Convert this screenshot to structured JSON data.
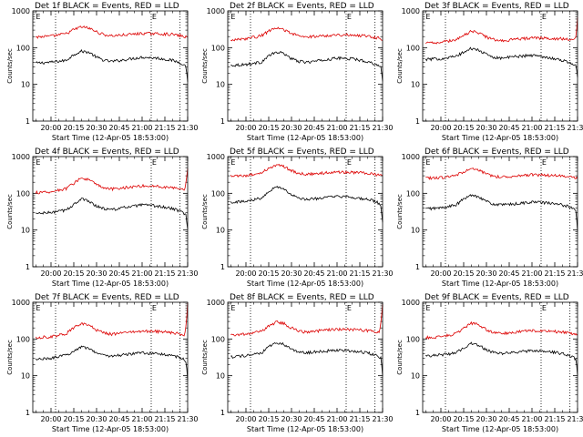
{
  "page": {
    "ylabel": "Counts/sec",
    "xlabel": "Start Time (12-Apr-05 18:53:00)",
    "marker_label": "E",
    "y_ticks": [
      "1",
      "10",
      "100",
      "1000"
    ],
    "x_ticks": [
      "20:00",
      "20:15",
      "20:30",
      "20:45",
      "21:00",
      "21:15",
      "21:30"
    ],
    "colors": {
      "events": "#000000",
      "lld": "#dd0000",
      "axis": "#000000"
    }
  },
  "chart_data": [
    {
      "type": "line",
      "title": "Det 1f BLACK = Events, RED = LLD",
      "x_range_min": [
        -12,
        90
      ],
      "ylim": [
        1,
        1000
      ],
      "y_scale": "log",
      "dotted_markers_min": [
        3,
        66,
        85
      ],
      "series": [
        {
          "key": "events",
          "color": "#000000",
          "x": [
            -10,
            0,
            10,
            15,
            20,
            25,
            30,
            35,
            40,
            50,
            60,
            70,
            80,
            86,
            89,
            90
          ],
          "values": [
            38,
            40,
            45,
            65,
            80,
            75,
            55,
            45,
            42,
            48,
            55,
            52,
            45,
            38,
            30,
            12
          ]
        },
        {
          "key": "lld",
          "color": "#dd0000",
          "x": [
            -10,
            0,
            10,
            15,
            20,
            25,
            30,
            35,
            40,
            50,
            60,
            70,
            80,
            88,
            90
          ],
          "values": [
            195,
            205,
            240,
            310,
            370,
            340,
            270,
            225,
            210,
            225,
            245,
            240,
            230,
            200,
            185
          ]
        }
      ]
    },
    {
      "type": "line",
      "title": "Det 2f BLACK = Events, RED = LLD",
      "x_range_min": [
        -12,
        90
      ],
      "ylim": [
        1,
        1000
      ],
      "y_scale": "log",
      "dotted_markers_min": [
        3,
        66,
        85
      ],
      "series": [
        {
          "key": "events",
          "color": "#000000",
          "x": [
            -10,
            0,
            10,
            15,
            20,
            25,
            30,
            35,
            40,
            50,
            60,
            70,
            80,
            86,
            89,
            90
          ],
          "values": [
            33,
            35,
            40,
            60,
            75,
            70,
            50,
            42,
            40,
            45,
            52,
            50,
            42,
            35,
            28,
            12
          ]
        },
        {
          "key": "lld",
          "color": "#dd0000",
          "x": [
            -10,
            0,
            10,
            15,
            20,
            25,
            30,
            35,
            40,
            50,
            60,
            70,
            80,
            88,
            90
          ],
          "values": [
            165,
            175,
            210,
            280,
            340,
            310,
            245,
            205,
            195,
            210,
            225,
            220,
            210,
            180,
            170
          ]
        }
      ]
    },
    {
      "type": "line",
      "title": "Det 3f BLACK = Events, RED = LLD",
      "x_range_min": [
        -12,
        90
      ],
      "ylim": [
        1,
        1000
      ],
      "y_scale": "log",
      "dotted_markers_min": [
        3,
        66,
        85
      ],
      "series": [
        {
          "key": "events",
          "color": "#000000",
          "x": [
            -10,
            0,
            10,
            15,
            20,
            25,
            30,
            35,
            40,
            50,
            60,
            70,
            80,
            86,
            89,
            90
          ],
          "values": [
            48,
            50,
            58,
            75,
            95,
            85,
            65,
            55,
            52,
            58,
            62,
            55,
            45,
            38,
            32,
            15
          ]
        },
        {
          "key": "lld",
          "color": "#dd0000",
          "x": [
            -10,
            0,
            10,
            15,
            20,
            25,
            30,
            35,
            40,
            50,
            60,
            70,
            80,
            88,
            89,
            90
          ],
          "values": [
            135,
            140,
            165,
            215,
            280,
            255,
            195,
            165,
            155,
            170,
            185,
            180,
            175,
            160,
            200,
            650
          ]
        }
      ]
    },
    {
      "type": "line",
      "title": "Det 4f BLACK = Events, RED = LLD",
      "x_range_min": [
        -12,
        90
      ],
      "ylim": [
        1,
        1000
      ],
      "y_scale": "log",
      "dotted_markers_min": [
        3,
        66,
        85
      ],
      "series": [
        {
          "key": "events",
          "color": "#000000",
          "x": [
            -10,
            0,
            10,
            15,
            20,
            25,
            30,
            35,
            40,
            50,
            60,
            70,
            80,
            86,
            89,
            90
          ],
          "values": [
            28,
            30,
            35,
            50,
            70,
            62,
            45,
            38,
            36,
            42,
            48,
            45,
            38,
            32,
            26,
            10
          ]
        },
        {
          "key": "lld",
          "color": "#dd0000",
          "x": [
            -10,
            0,
            10,
            15,
            20,
            25,
            30,
            35,
            40,
            50,
            60,
            70,
            80,
            88,
            89,
            90
          ],
          "values": [
            105,
            110,
            135,
            190,
            260,
            235,
            170,
            140,
            130,
            145,
            160,
            155,
            145,
            130,
            200,
            500
          ]
        }
      ]
    },
    {
      "type": "line",
      "title": "Det 5f BLACK = Events, RED = LLD",
      "x_range_min": [
        -12,
        90
      ],
      "ylim": [
        1,
        1000
      ],
      "y_scale": "log",
      "dotted_markers_min": [
        3,
        66,
        85
      ],
      "series": [
        {
          "key": "events",
          "color": "#000000",
          "x": [
            -10,
            0,
            10,
            15,
            20,
            25,
            30,
            35,
            40,
            50,
            60,
            70,
            80,
            86,
            89,
            90
          ],
          "values": [
            58,
            60,
            75,
            115,
            150,
            135,
            90,
            72,
            68,
            75,
            82,
            78,
            68,
            60,
            45,
            15
          ]
        },
        {
          "key": "lld",
          "color": "#dd0000",
          "x": [
            -10,
            0,
            10,
            15,
            20,
            25,
            30,
            35,
            40,
            50,
            60,
            70,
            80,
            88,
            90
          ],
          "values": [
            290,
            300,
            360,
            480,
            590,
            540,
            420,
            350,
            330,
            355,
            380,
            370,
            350,
            310,
            295
          ]
        }
      ]
    },
    {
      "type": "line",
      "title": "Det 6f BLACK = Events, RED = LLD",
      "x_range_min": [
        -12,
        90
      ],
      "ylim": [
        1,
        1000
      ],
      "y_scale": "log",
      "dotted_markers_min": [
        3,
        66,
        85
      ],
      "series": [
        {
          "key": "events",
          "color": "#000000",
          "x": [
            -10,
            0,
            10,
            15,
            20,
            25,
            30,
            35,
            40,
            50,
            60,
            70,
            80,
            86,
            89,
            90
          ],
          "values": [
            38,
            40,
            48,
            70,
            90,
            82,
            60,
            50,
            48,
            52,
            58,
            55,
            48,
            42,
            35,
            10
          ]
        },
        {
          "key": "lld",
          "color": "#dd0000",
          "x": [
            -10,
            0,
            10,
            15,
            20,
            25,
            30,
            35,
            40,
            50,
            60,
            70,
            80,
            88,
            90
          ],
          "values": [
            260,
            265,
            305,
            390,
            460,
            420,
            335,
            290,
            280,
            300,
            320,
            310,
            295,
            270,
            255
          ]
        }
      ]
    },
    {
      "type": "line",
      "title": "Det 7f BLACK = Events, RED = LLD",
      "x_range_min": [
        -12,
        90
      ],
      "ylim": [
        1,
        1000
      ],
      "y_scale": "log",
      "dotted_markers_min": [
        3,
        66,
        85
      ],
      "series": [
        {
          "key": "events",
          "color": "#000000",
          "x": [
            -10,
            0,
            10,
            15,
            20,
            25,
            30,
            35,
            40,
            50,
            60,
            70,
            80,
            86,
            89,
            90
          ],
          "values": [
            28,
            30,
            36,
            48,
            62,
            56,
            42,
            36,
            34,
            38,
            42,
            40,
            35,
            30,
            25,
            8
          ]
        },
        {
          "key": "lld",
          "color": "#dd0000",
          "x": [
            -10,
            0,
            10,
            15,
            20,
            25,
            30,
            35,
            40,
            50,
            60,
            70,
            80,
            88,
            89,
            90
          ],
          "values": [
            110,
            115,
            140,
            200,
            260,
            235,
            175,
            145,
            135,
            150,
            165,
            160,
            150,
            130,
            250,
            900
          ]
        }
      ]
    },
    {
      "type": "line",
      "title": "Det 8f BLACK = Events, RED = LLD",
      "x_range_min": [
        -12,
        90
      ],
      "ylim": [
        1,
        1000
      ],
      "y_scale": "log",
      "dotted_markers_min": [
        3,
        66,
        85
      ],
      "series": [
        {
          "key": "events",
          "color": "#000000",
          "x": [
            -10,
            0,
            10,
            15,
            20,
            25,
            30,
            35,
            40,
            50,
            60,
            70,
            80,
            86,
            89,
            90
          ],
          "values": [
            33,
            35,
            40,
            62,
            80,
            72,
            52,
            44,
            42,
            46,
            50,
            48,
            42,
            36,
            30,
            10
          ]
        },
        {
          "key": "lld",
          "color": "#dd0000",
          "x": [
            -10,
            0,
            10,
            15,
            20,
            25,
            30,
            35,
            40,
            50,
            60,
            70,
            80,
            88,
            89,
            90
          ],
          "values": [
            130,
            135,
            160,
            225,
            290,
            265,
            200,
            165,
            155,
            170,
            185,
            180,
            170,
            150,
            300,
            900
          ]
        }
      ]
    },
    {
      "type": "line",
      "title": "Det 9f BLACK = Events, RED = LLD",
      "x_range_min": [
        -12,
        90
      ],
      "ylim": [
        1,
        1000
      ],
      "y_scale": "log",
      "dotted_markers_min": [
        3,
        66,
        85
      ],
      "series": [
        {
          "key": "events",
          "color": "#000000",
          "x": [
            -10,
            0,
            10,
            15,
            20,
            25,
            30,
            35,
            40,
            50,
            60,
            70,
            80,
            86,
            89,
            90
          ],
          "values": [
            35,
            37,
            42,
            58,
            75,
            68,
            50,
            42,
            40,
            44,
            48,
            46,
            40,
            34,
            28,
            10
          ]
        },
        {
          "key": "lld",
          "color": "#dd0000",
          "x": [
            -10,
            0,
            10,
            15,
            20,
            25,
            30,
            35,
            40,
            50,
            60,
            70,
            80,
            88,
            90
          ],
          "values": [
            110,
            115,
            140,
            200,
            270,
            245,
            180,
            150,
            140,
            155,
            170,
            165,
            155,
            135,
            125
          ]
        }
      ]
    }
  ]
}
